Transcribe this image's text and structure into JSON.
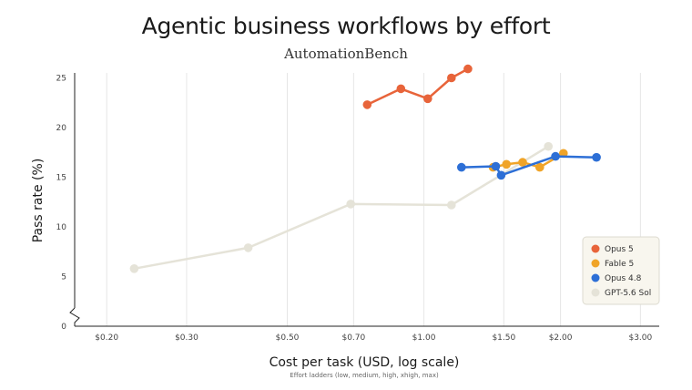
{
  "chart_data": {
    "type": "line",
    "title": "Agentic business workflows by effort",
    "subtitle": "AutomationBench",
    "xlabel": "Cost per task (USD, log scale)",
    "xnote": "Effort ladders (low, medium, high, xhigh, max)",
    "ylabel": "Pass rate (%)",
    "xscale": "log",
    "xlim": [
      0.17,
      3.3
    ],
    "ylim": [
      0,
      25.5
    ],
    "xticks": [
      0.2,
      0.3,
      0.5,
      0.7,
      1.0,
      1.5,
      2.0,
      3.0
    ],
    "xtick_labels": [
      "$0.20",
      "$0.30",
      "$0.50",
      "$0.70",
      "$1.00",
      "$1.50",
      "$2.00",
      "$3.00"
    ],
    "yticks": [
      0,
      5,
      10,
      15,
      20,
      25
    ],
    "ytick_labels": [
      "0",
      "5",
      "10",
      "15",
      "20",
      "25"
    ],
    "grid": "vertical",
    "legend_position": "right",
    "series": [
      {
        "name": "Opus 5",
        "color": "#E8643A",
        "x": [
          0.75,
          0.89,
          1.02,
          1.15,
          1.25
        ],
        "y": [
          22.3,
          23.9,
          22.9,
          25.0,
          25.9
        ]
      },
      {
        "name": "Fable 5",
        "color": "#F0A428",
        "x": [
          1.42,
          1.52,
          1.65,
          1.8,
          2.03
        ],
        "y": [
          16.0,
          16.3,
          16.5,
          16.0,
          17.4
        ]
      },
      {
        "name": "Opus 4.8",
        "color": "#2D6FD6",
        "x": [
          1.21,
          1.44,
          1.48,
          1.95,
          2.4
        ],
        "y": [
          16.0,
          16.1,
          15.2,
          17.1,
          17.0
        ]
      },
      {
        "name": "GPT-5.6 Sol",
        "color": "#E5E3D8",
        "x": [
          0.23,
          0.41,
          0.69,
          1.15,
          1.88
        ],
        "y": [
          5.8,
          7.9,
          12.3,
          12.2,
          18.1
        ]
      }
    ]
  }
}
